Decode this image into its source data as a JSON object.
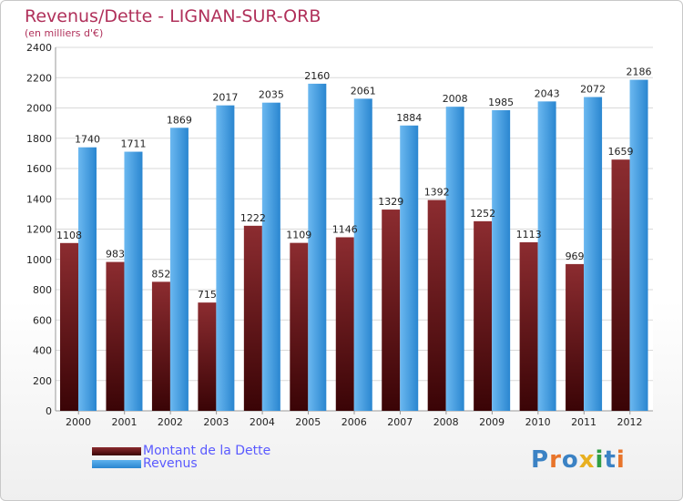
{
  "header": {
    "title": "Revenus/Dette - LIGNAN-SUR-ORB",
    "subtitle": "(en milliers d'€)"
  },
  "logo": {
    "text": "Proxiti",
    "letter_colors": [
      "#3b82c4",
      "#e8742a",
      "#3b82c4",
      "#e8b020",
      "#2f9e44",
      "#3b82c4",
      "#e8742a"
    ]
  },
  "chart_data": {
    "type": "bar",
    "categories": [
      "2000",
      "2001",
      "2002",
      "2003",
      "2004",
      "2005",
      "2006",
      "2007",
      "2008",
      "2009",
      "2010",
      "2011",
      "2012"
    ],
    "series": [
      {
        "name": "Montant de la Dette",
        "color": "#6a0f12",
        "values": [
          1108,
          983,
          852,
          715,
          1222,
          1109,
          1146,
          1329,
          1392,
          1252,
          1113,
          969,
          1659
        ],
        "labels": [
          "1108",
          "983",
          "852",
          "715",
          "1222",
          "1109",
          "1146",
          "1329",
          "1392",
          "1252",
          "1113",
          "969",
          "1659"
        ]
      },
      {
        "name": "Revenus",
        "color": "#2f8fd8",
        "values": [
          1740,
          1711,
          1869,
          2017,
          2035,
          2160,
          2061,
          1884,
          2008,
          1985,
          2043,
          2072,
          2186
        ],
        "labels": [
          "1740",
          "1711",
          "1869",
          "2017",
          "2035",
          "2160",
          "2061",
          "1884",
          "2008",
          "1985",
          "2043",
          "2072",
          "2186"
        ]
      }
    ],
    "yticks": [
      "0",
      "200",
      "400",
      "600",
      "800",
      "1000",
      "1200",
      "1400",
      "1600",
      "1800",
      "2000",
      "2200",
      "2400"
    ],
    "ylim": [
      0,
      2400
    ],
    "grid": true,
    "legend_position": "bottom-left"
  }
}
